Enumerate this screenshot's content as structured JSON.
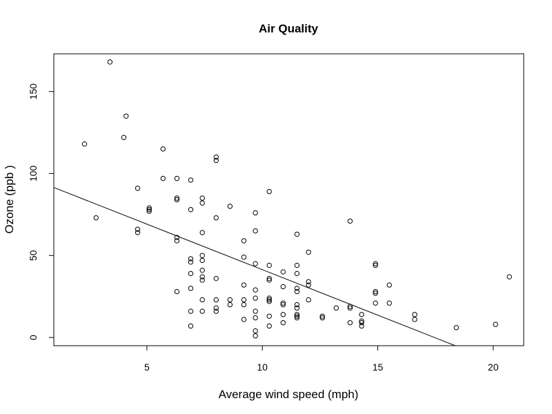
{
  "chart_data": {
    "type": "scatter",
    "title": "Air Quality",
    "xlabel": "Average wind speed (mph)",
    "ylabel": "Ozone (ppb )",
    "xlim": [
      0.97,
      21.32
    ],
    "ylim": [
      -5.0,
      173.0
    ],
    "xticks": [
      5,
      10,
      15,
      20
    ],
    "yticks": [
      0,
      50,
      100,
      150
    ],
    "grid": false,
    "legend": "none",
    "point_color": "#000000",
    "points": [
      {
        "x": 2.3,
        "y": 118
      },
      {
        "x": 2.8,
        "y": 73
      },
      {
        "x": 3.4,
        "y": 168
      },
      {
        "x": 4.0,
        "y": 122
      },
      {
        "x": 4.1,
        "y": 135
      },
      {
        "x": 4.6,
        "y": 91
      },
      {
        "x": 4.6,
        "y": 66
      },
      {
        "x": 4.6,
        "y": 64
      },
      {
        "x": 5.1,
        "y": 79
      },
      {
        "x": 5.1,
        "y": 78
      },
      {
        "x": 5.1,
        "y": 77
      },
      {
        "x": 5.7,
        "y": 115
      },
      {
        "x": 5.7,
        "y": 97
      },
      {
        "x": 6.3,
        "y": 97
      },
      {
        "x": 6.3,
        "y": 85
      },
      {
        "x": 6.3,
        "y": 84
      },
      {
        "x": 6.3,
        "y": 61
      },
      {
        "x": 6.3,
        "y": 59
      },
      {
        "x": 6.3,
        "y": 28
      },
      {
        "x": 6.9,
        "y": 96
      },
      {
        "x": 6.9,
        "y": 78
      },
      {
        "x": 6.9,
        "y": 48
      },
      {
        "x": 6.9,
        "y": 46
      },
      {
        "x": 6.9,
        "y": 39
      },
      {
        "x": 6.9,
        "y": 30
      },
      {
        "x": 6.9,
        "y": 16
      },
      {
        "x": 6.9,
        "y": 7
      },
      {
        "x": 7.4,
        "y": 85
      },
      {
        "x": 7.4,
        "y": 82
      },
      {
        "x": 7.4,
        "y": 64
      },
      {
        "x": 7.4,
        "y": 50
      },
      {
        "x": 7.4,
        "y": 47
      },
      {
        "x": 7.4,
        "y": 41
      },
      {
        "x": 7.4,
        "y": 37
      },
      {
        "x": 7.4,
        "y": 35
      },
      {
        "x": 7.4,
        "y": 23
      },
      {
        "x": 7.4,
        "y": 16
      },
      {
        "x": 8.0,
        "y": 110
      },
      {
        "x": 8.0,
        "y": 108
      },
      {
        "x": 8.0,
        "y": 73
      },
      {
        "x": 8.0,
        "y": 36
      },
      {
        "x": 8.0,
        "y": 23
      },
      {
        "x": 8.0,
        "y": 18
      },
      {
        "x": 8.0,
        "y": 16
      },
      {
        "x": 8.6,
        "y": 80
      },
      {
        "x": 8.6,
        "y": 23
      },
      {
        "x": 8.6,
        "y": 20
      },
      {
        "x": 9.2,
        "y": 59
      },
      {
        "x": 9.2,
        "y": 49
      },
      {
        "x": 9.2,
        "y": 32
      },
      {
        "x": 9.2,
        "y": 23
      },
      {
        "x": 9.2,
        "y": 20
      },
      {
        "x": 9.2,
        "y": 11
      },
      {
        "x": 9.7,
        "y": 76
      },
      {
        "x": 9.7,
        "y": 65
      },
      {
        "x": 9.7,
        "y": 45
      },
      {
        "x": 9.7,
        "y": 29
      },
      {
        "x": 9.7,
        "y": 24
      },
      {
        "x": 9.7,
        "y": 16
      },
      {
        "x": 9.7,
        "y": 12
      },
      {
        "x": 9.7,
        "y": 4
      },
      {
        "x": 9.7,
        "y": 1
      },
      {
        "x": 10.3,
        "y": 89
      },
      {
        "x": 10.3,
        "y": 44
      },
      {
        "x": 10.3,
        "y": 36
      },
      {
        "x": 10.3,
        "y": 35
      },
      {
        "x": 10.3,
        "y": 24
      },
      {
        "x": 10.3,
        "y": 23
      },
      {
        "x": 10.3,
        "y": 22
      },
      {
        "x": 10.3,
        "y": 13
      },
      {
        "x": 10.3,
        "y": 7
      },
      {
        "x": 10.9,
        "y": 40
      },
      {
        "x": 10.9,
        "y": 31
      },
      {
        "x": 10.9,
        "y": 21
      },
      {
        "x": 10.9,
        "y": 20
      },
      {
        "x": 10.9,
        "y": 14
      },
      {
        "x": 10.9,
        "y": 9
      },
      {
        "x": 11.5,
        "y": 63
      },
      {
        "x": 11.5,
        "y": 44
      },
      {
        "x": 11.5,
        "y": 39
      },
      {
        "x": 11.5,
        "y": 30
      },
      {
        "x": 11.5,
        "y": 28
      },
      {
        "x": 11.5,
        "y": 20
      },
      {
        "x": 11.5,
        "y": 18
      },
      {
        "x": 11.5,
        "y": 14
      },
      {
        "x": 11.5,
        "y": 13
      },
      {
        "x": 11.5,
        "y": 12
      },
      {
        "x": 12.0,
        "y": 52
      },
      {
        "x": 12.0,
        "y": 34
      },
      {
        "x": 12.0,
        "y": 32
      },
      {
        "x": 12.0,
        "y": 23
      },
      {
        "x": 12.6,
        "y": 13
      },
      {
        "x": 12.6,
        "y": 12
      },
      {
        "x": 13.2,
        "y": 18
      },
      {
        "x": 13.8,
        "y": 71
      },
      {
        "x": 13.8,
        "y": 19
      },
      {
        "x": 13.8,
        "y": 18
      },
      {
        "x": 13.8,
        "y": 9
      },
      {
        "x": 14.3,
        "y": 14
      },
      {
        "x": 14.3,
        "y": 10
      },
      {
        "x": 14.3,
        "y": 9
      },
      {
        "x": 14.3,
        "y": 7
      },
      {
        "x": 14.9,
        "y": 45
      },
      {
        "x": 14.9,
        "y": 44
      },
      {
        "x": 14.9,
        "y": 28
      },
      {
        "x": 14.9,
        "y": 27
      },
      {
        "x": 14.9,
        "y": 21
      },
      {
        "x": 15.5,
        "y": 32
      },
      {
        "x": 15.5,
        "y": 21
      },
      {
        "x": 16.6,
        "y": 14
      },
      {
        "x": 16.6,
        "y": 11
      },
      {
        "x": 18.4,
        "y": 6
      },
      {
        "x": 20.1,
        "y": 8
      },
      {
        "x": 20.7,
        "y": 37
      }
    ],
    "regression_line": {
      "intercept": 96.87,
      "slope": -5.55
    }
  }
}
